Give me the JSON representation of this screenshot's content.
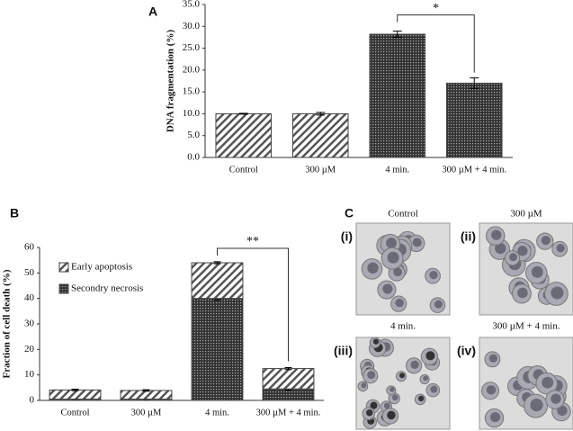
{
  "chart_data": [
    {
      "type": "bar",
      "panel": "A",
      "ylabel": "DNA fragmentation (%)",
      "categories": [
        "Control",
        "300 µM",
        "4 min.",
        "300 µM + 4 min."
      ],
      "values": [
        10,
        10,
        28.2,
        17
      ],
      "errors": [
        0.1,
        0.3,
        0.7,
        1.2
      ],
      "patterns": [
        "diagonal",
        "diagonal",
        "dotted",
        "dotted"
      ],
      "ylim": [
        0,
        35
      ],
      "yticks": [
        {
          "value": 0,
          "label": "0.0"
        },
        {
          "value": 5,
          "label": "5.0"
        },
        {
          "value": 10,
          "label": "10.0"
        },
        {
          "value": 15,
          "label": "15.0"
        },
        {
          "value": 20,
          "label": "20.0"
        },
        {
          "value": 25,
          "label": "25.0"
        },
        {
          "value": 30,
          "label": "30.0"
        },
        {
          "value": 35,
          "label": "35.0"
        }
      ],
      "annotation": "*"
    },
    {
      "type": "stacked_bar",
      "panel": "B",
      "ylabel": "Fraction of cell death (%)",
      "categories": [
        "Control",
        "300 µM",
        "4 min.",
        "300 µM + 4 min."
      ],
      "series": [
        {
          "name": "Secondry necrosis",
          "pattern": "dotted",
          "values": [
            0.5,
            0.5,
            40,
            4.5
          ],
          "errors": [
            0.1,
            0.1,
            0.6,
            0.4
          ]
        },
        {
          "name": "Early apoptosis",
          "pattern": "diagonal",
          "values": [
            3.6,
            3.4,
            14,
            8
          ],
          "errors": [
            0.3,
            0.3,
            0.4,
            0.4
          ]
        }
      ],
      "legend": "upper left",
      "ylim": [
        0,
        60
      ],
      "yticks": [
        0,
        10,
        20,
        30,
        40,
        50,
        60
      ],
      "annotation": "**"
    }
  ],
  "panel_c": {
    "label": "C",
    "images": [
      {
        "index": "(i)",
        "caption": "Control"
      },
      {
        "index": "(ii)",
        "caption": "300 µM"
      },
      {
        "index": "(iii)",
        "caption": "4 min."
      },
      {
        "index": "(iv)",
        "caption": "300 µM + 4 min."
      }
    ]
  }
}
